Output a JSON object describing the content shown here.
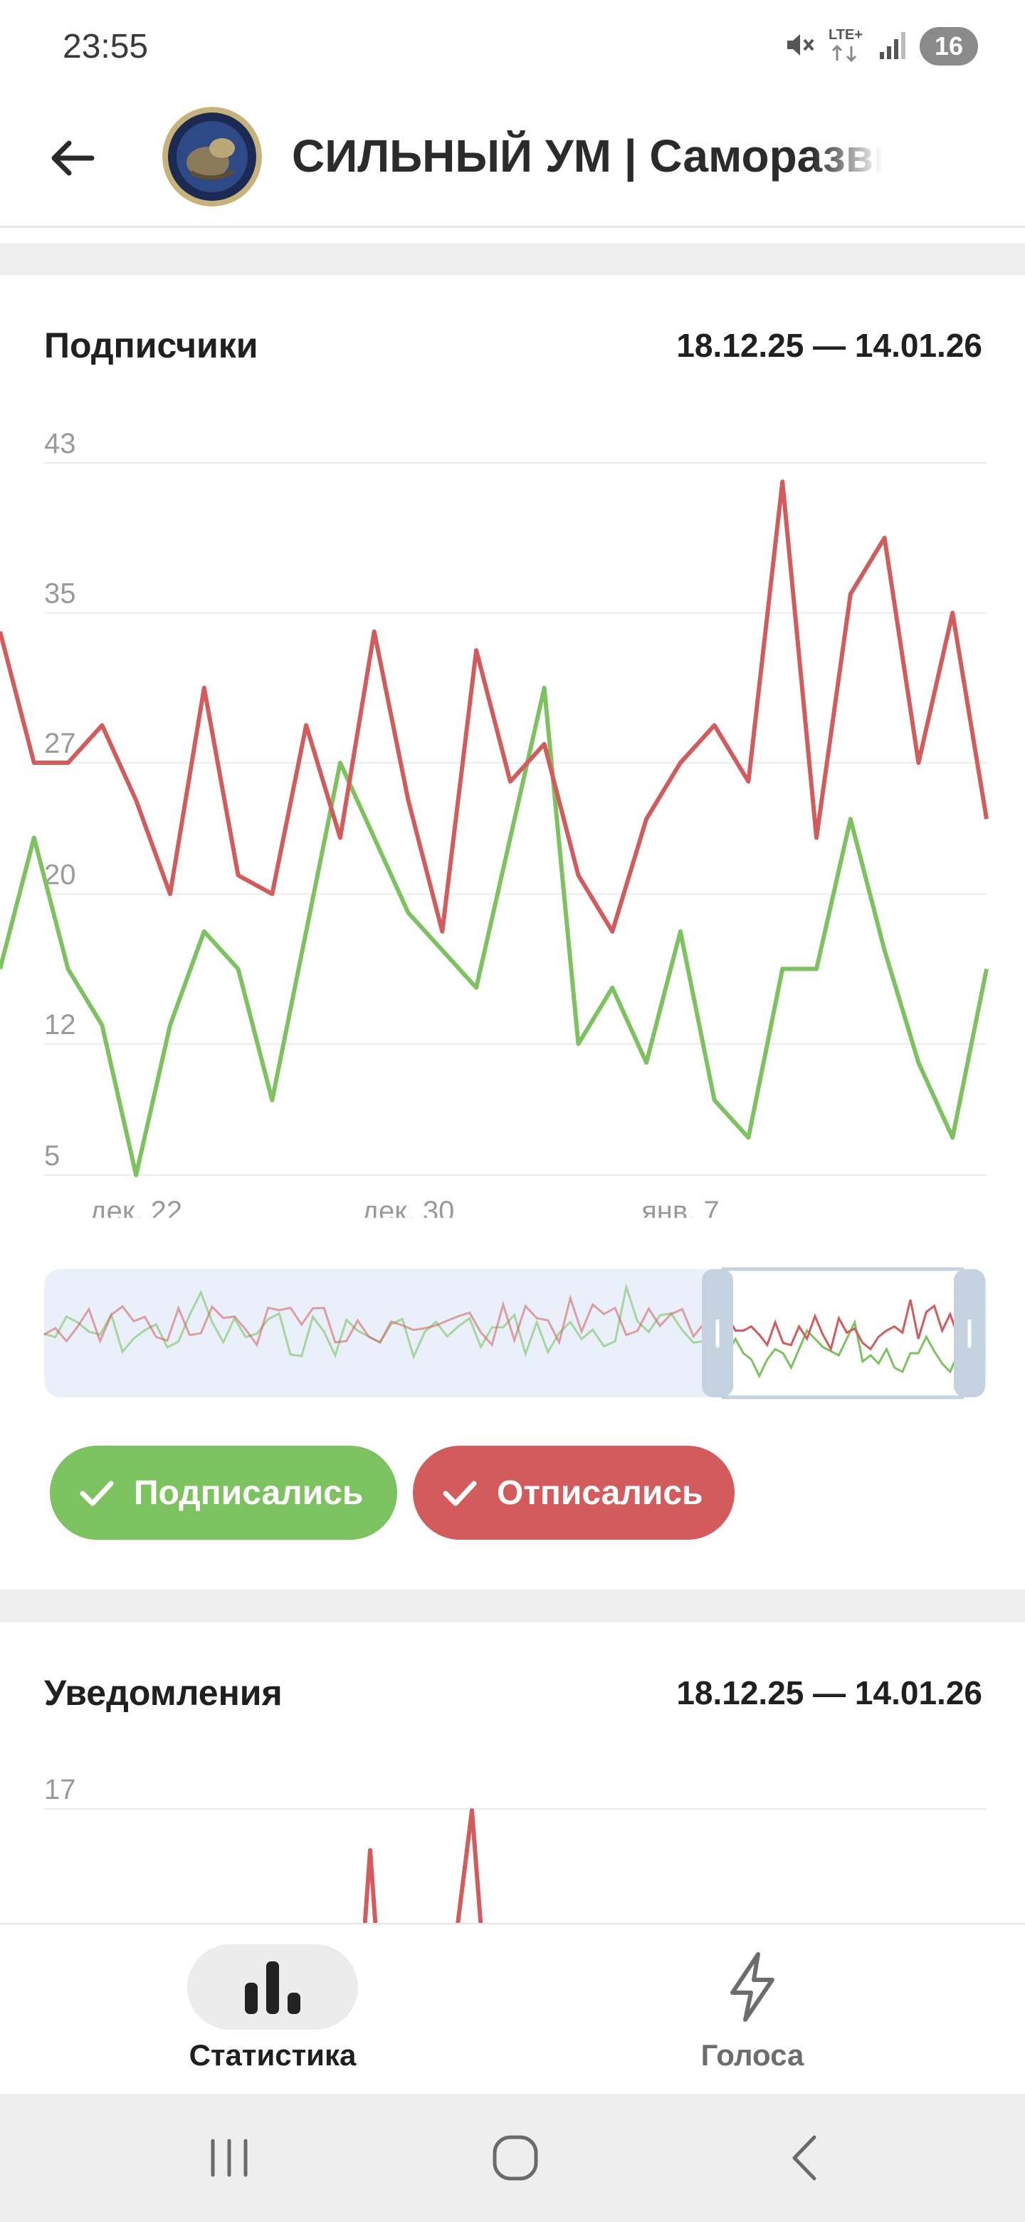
{
  "status_bar": {
    "time": "23:55",
    "network": "LTE+",
    "battery": "16",
    "icons": [
      "mute-icon",
      "lte-icon",
      "signal-icon",
      "battery-icon"
    ]
  },
  "header": {
    "back_icon": "arrow-left-icon",
    "channel_title": "СИЛЬНЫЙ УМ | Саморазвитие"
  },
  "subscribers": {
    "title": "Подписчики",
    "date_range": "18.12.25 — 14.01.26",
    "toggles": {
      "subscribed": "Подписались",
      "unsubscribed": "Отписались"
    }
  },
  "notifications": {
    "title": "Уведомления",
    "date_range": "18.12.25 — 14.01.26"
  },
  "bottom_nav": {
    "statistics": "Статистика",
    "votes": "Голоса"
  },
  "colors": {
    "green": "#7cc35f",
    "red": "#d45b5b",
    "grid": "#ececec",
    "tick": "#9a9a9a"
  },
  "chart_data": [
    {
      "type": "line",
      "title": "Подписчики",
      "y_ticks": [
        5,
        12,
        20,
        27,
        35,
        43
      ],
      "ylim": [
        5,
        43
      ],
      "x_tick_labels": [
        "дек. 22",
        "дек. 30",
        "янв. 7"
      ],
      "x_tick_index": [
        4,
        12,
        20
      ],
      "grid": true,
      "series": [
        {
          "name": "Подписались",
          "color": "#7cc35f",
          "values": [
            16,
            23,
            16,
            13,
            5,
            13,
            18,
            16,
            9,
            18,
            27,
            23,
            19,
            17,
            15,
            23,
            31,
            12,
            15,
            11,
            18,
            9,
            7,
            16,
            16,
            24,
            17,
            11,
            7,
            16
          ]
        },
        {
          "name": "Отписались",
          "color": "#d45b5b",
          "values": [
            34,
            27,
            27,
            29,
            25,
            20,
            31,
            21,
            20,
            29,
            23,
            34,
            25,
            18,
            33,
            26,
            28,
            21,
            18,
            24,
            27,
            29,
            26,
            42,
            23,
            36,
            39,
            27,
            35,
            24
          ]
        }
      ]
    },
    {
      "type": "line",
      "title": "Уведомления",
      "y_ticks": [
        17
      ],
      "ylim": [
        0,
        17
      ],
      "grid": true,
      "series": [
        {
          "name": "",
          "color": "#d45b5b",
          "values": []
        }
      ]
    }
  ]
}
